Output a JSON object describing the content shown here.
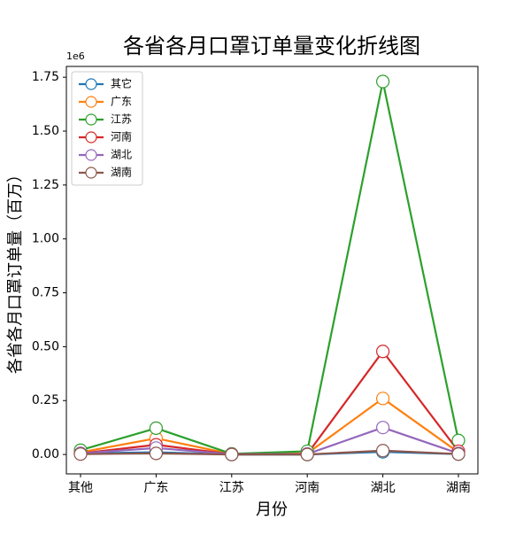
{
  "chart_data": {
    "type": "line",
    "title": "各省各月口罩订单量变化折线图",
    "x_label": "月份",
    "y_label": "各省各月口罩订单量（百万）",
    "y_offset_label": "1e6",
    "categories": [
      "其他",
      "广东",
      "江苏",
      "河南",
      "湖北",
      "湖南"
    ],
    "series": [
      {
        "name": "其它",
        "color": "#1f77b4",
        "values": [
          0.005,
          0.01,
          0.0,
          0.0,
          0.012,
          0.002
        ]
      },
      {
        "name": "广东",
        "color": "#ff7f0e",
        "values": [
          0.01,
          0.075,
          0.002,
          0.005,
          0.26,
          0.01
        ]
      },
      {
        "name": "江苏",
        "color": "#2ca02c",
        "values": [
          0.02,
          0.122,
          0.003,
          0.015,
          1.73,
          0.065
        ]
      },
      {
        "name": "河南",
        "color": "#d62728",
        "values": [
          0.005,
          0.045,
          0.001,
          0.002,
          0.478,
          0.015
        ]
      },
      {
        "name": "湖北",
        "color": "#9467bd",
        "values": [
          0.005,
          0.03,
          0.001,
          0.002,
          0.125,
          0.005
        ]
      },
      {
        "name": "湖南",
        "color": "#8c564b",
        "values": [
          0.002,
          0.005,
          0.0,
          0.0,
          0.018,
          0.002
        ]
      }
    ],
    "ylim": [
      -0.09,
      1.8
    ],
    "yticks": [
      {
        "value": 0,
        "label": "0.00"
      },
      0.25,
      {
        "value": 0.5,
        "label": "0.50"
      },
      0.75,
      {
        "value": 1,
        "label": "1.00"
      },
      1.25,
      {
        "value": 1.5,
        "label": "1.50"
      },
      1.75
    ],
    "grid": false,
    "legend": "upper-left"
  }
}
